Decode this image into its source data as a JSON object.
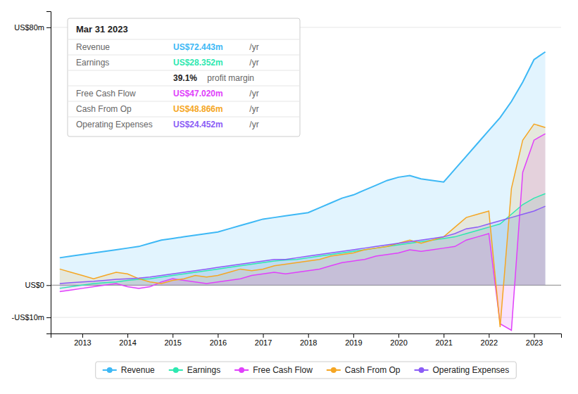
{
  "chart_data": {
    "type": "area",
    "x": [
      2012.5,
      2012.75,
      2013.0,
      2013.25,
      2013.5,
      2013.75,
      2014.0,
      2014.25,
      2014.5,
      2014.75,
      2015.0,
      2015.25,
      2015.5,
      2015.75,
      2016.0,
      2016.25,
      2016.5,
      2016.75,
      2017.0,
      2017.25,
      2017.5,
      2017.75,
      2018.0,
      2018.25,
      2018.5,
      2018.75,
      2019.0,
      2019.25,
      2019.5,
      2019.75,
      2020.0,
      2020.25,
      2020.5,
      2020.75,
      2021.0,
      2021.25,
      2021.5,
      2021.75,
      2022.0,
      2022.25,
      2022.5,
      2022.75,
      2023.0,
      2023.25
    ],
    "series": [
      {
        "name": "Revenue",
        "color": "#3db8f5",
        "values": [
          8.5,
          9.0,
          9.5,
          10.0,
          10.5,
          11.0,
          11.5,
          12.0,
          13.0,
          14.0,
          14.5,
          15.0,
          15.5,
          16.0,
          16.5,
          17.5,
          18.5,
          19.5,
          20.5,
          21.0,
          21.5,
          22.0,
          22.5,
          24.0,
          25.5,
          27.0,
          28.0,
          29.5,
          31.0,
          32.5,
          33.5,
          34.0,
          33.0,
          32.5,
          32.0,
          36.0,
          40.0,
          44.0,
          48.0,
          52.0,
          57.0,
          63.0,
          70.0,
          72.4
        ]
      },
      {
        "name": "Earnings",
        "color": "#2de8b0",
        "values": [
          -1.0,
          -0.5,
          0.0,
          0.5,
          0.8,
          1.0,
          1.5,
          1.8,
          2.0,
          2.5,
          3.0,
          3.5,
          4.0,
          4.5,
          5.0,
          5.5,
          6.0,
          6.5,
          7.0,
          7.5,
          7.8,
          8.0,
          8.5,
          9.0,
          9.5,
          10.0,
          10.5,
          11.0,
          11.5,
          12.0,
          12.5,
          13.0,
          13.5,
          14.0,
          14.5,
          15.0,
          16.0,
          17.0,
          18.0,
          19.0,
          22.0,
          25.0,
          27.0,
          28.4
        ]
      },
      {
        "name": "Free Cash Flow",
        "color": "#e040fb",
        "values": [
          -2.0,
          -1.5,
          -1.0,
          -0.5,
          0.0,
          0.5,
          -0.5,
          -1.0,
          -0.5,
          1.0,
          2.0,
          1.5,
          1.0,
          0.5,
          1.0,
          1.5,
          2.0,
          3.0,
          3.5,
          4.0,
          3.5,
          4.0,
          4.5,
          5.0,
          6.0,
          7.0,
          7.5,
          8.0,
          9.0,
          9.5,
          10.0,
          11.0,
          10.5,
          11.0,
          11.5,
          12.0,
          14.0,
          15.0,
          16.0,
          -12.0,
          -14.0,
          35.0,
          45.0,
          47.0
        ]
      },
      {
        "name": "Cash From Op",
        "color": "#f5a623",
        "values": [
          5.0,
          4.0,
          3.0,
          2.0,
          3.0,
          4.0,
          3.5,
          2.0,
          1.0,
          0.5,
          1.5,
          2.0,
          3.0,
          2.5,
          3.0,
          4.0,
          5.0,
          4.5,
          5.0,
          6.0,
          6.5,
          7.0,
          7.5,
          8.0,
          9.0,
          9.5,
          10.0,
          11.0,
          11.5,
          12.0,
          13.0,
          14.0,
          13.0,
          14.0,
          15.0,
          18.0,
          21.0,
          22.0,
          23.0,
          -13.0,
          30.0,
          45.0,
          50.0,
          48.9
        ]
      },
      {
        "name": "Operating Expenses",
        "color": "#8b5cf6",
        "values": [
          0.5,
          0.8,
          1.0,
          1.2,
          1.5,
          1.8,
          2.0,
          2.2,
          2.5,
          3.0,
          3.5,
          4.0,
          4.5,
          5.0,
          5.5,
          6.0,
          6.5,
          7.0,
          7.5,
          8.0,
          8.0,
          8.5,
          9.0,
          9.5,
          10.0,
          10.5,
          11.0,
          11.5,
          12.0,
          12.5,
          13.0,
          13.5,
          14.0,
          14.5,
          15.0,
          16.0,
          17.5,
          18.0,
          19.0,
          20.0,
          21.0,
          22.0,
          23.0,
          24.5
        ]
      }
    ],
    "xlim": [
      2012.3,
      2023.6
    ],
    "xticks": [
      2013,
      2014,
      2015,
      2016,
      2017,
      2018,
      2019,
      2020,
      2021,
      2022,
      2023
    ],
    "ylim": [
      -15,
      85
    ],
    "yticks": [
      {
        "value": -10,
        "label": "-US$10m"
      },
      {
        "value": 0,
        "label": "US$0"
      },
      {
        "value": 80,
        "label": "US$80m"
      }
    ],
    "grid": true,
    "legend": "bottom",
    "annotations": [
      {
        "text": "Mar 31 2023"
      },
      {
        "label": "Revenue",
        "value": "US$72.443m",
        "unit": " /yr",
        "color": "#3db8f5"
      },
      {
        "label": "Earnings",
        "value": "US$28.352m",
        "unit": " /yr",
        "color": "#2de8b0"
      },
      {
        "value": "39.1%",
        "unit": " profit margin"
      },
      {
        "label": "Free Cash Flow",
        "value": "US$47.020m",
        "unit": " /yr",
        "color": "#e040fb"
      },
      {
        "label": "Cash From Op",
        "value": "US$48.866m",
        "unit": " /yr",
        "color": "#f5a623"
      },
      {
        "label": "Operating Expenses",
        "value": "US$24.452m",
        "unit": " /yr",
        "color": "#8b5cf6"
      }
    ]
  }
}
